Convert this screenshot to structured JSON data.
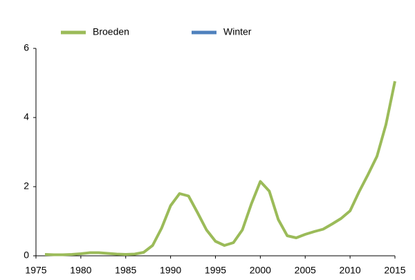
{
  "chart_data": {
    "type": "line",
    "x": [
      1976,
      1977,
      1978,
      1979,
      1980,
      1981,
      1982,
      1983,
      1984,
      1985,
      1986,
      1987,
      1988,
      1989,
      1990,
      1991,
      1992,
      1993,
      1994,
      1995,
      1996,
      1997,
      1998,
      1999,
      2000,
      2001,
      2002,
      2003,
      2004,
      2005,
      2006,
      2007,
      2008,
      2009,
      2010,
      2011,
      2012,
      2013,
      2014,
      2015
    ],
    "series": [
      {
        "name": "Broeden",
        "color": "#9bbb59",
        "values": [
          0.04,
          0.03,
          0.03,
          0.04,
          0.06,
          0.09,
          0.09,
          0.07,
          0.05,
          0.04,
          0.05,
          0.1,
          0.3,
          0.8,
          1.45,
          1.8,
          1.73,
          1.25,
          0.75,
          0.42,
          0.3,
          0.38,
          0.75,
          1.5,
          2.15,
          1.87,
          1.05,
          0.58,
          0.52,
          0.62,
          0.7,
          0.77,
          0.92,
          1.08,
          1.3,
          1.85,
          2.35,
          2.88,
          3.8,
          5.05
        ]
      },
      {
        "name": "Winter",
        "color": "#4f81bd",
        "values": [
          null,
          null,
          null,
          null,
          null,
          null,
          null,
          null,
          null,
          null,
          null,
          null,
          null,
          null,
          null,
          null,
          null,
          null,
          null,
          null,
          null,
          null,
          null,
          null,
          null,
          null,
          null,
          null,
          null,
          null,
          null,
          null,
          null,
          null,
          null,
          null,
          null,
          null,
          null,
          null
        ]
      }
    ],
    "xlim": [
      1975,
      2015
    ],
    "xticks": [
      1975,
      1980,
      1985,
      1990,
      1995,
      2000,
      2005,
      2010,
      2015
    ],
    "ylim": [
      0,
      6
    ],
    "yticks": [
      0,
      2,
      4,
      6
    ]
  }
}
